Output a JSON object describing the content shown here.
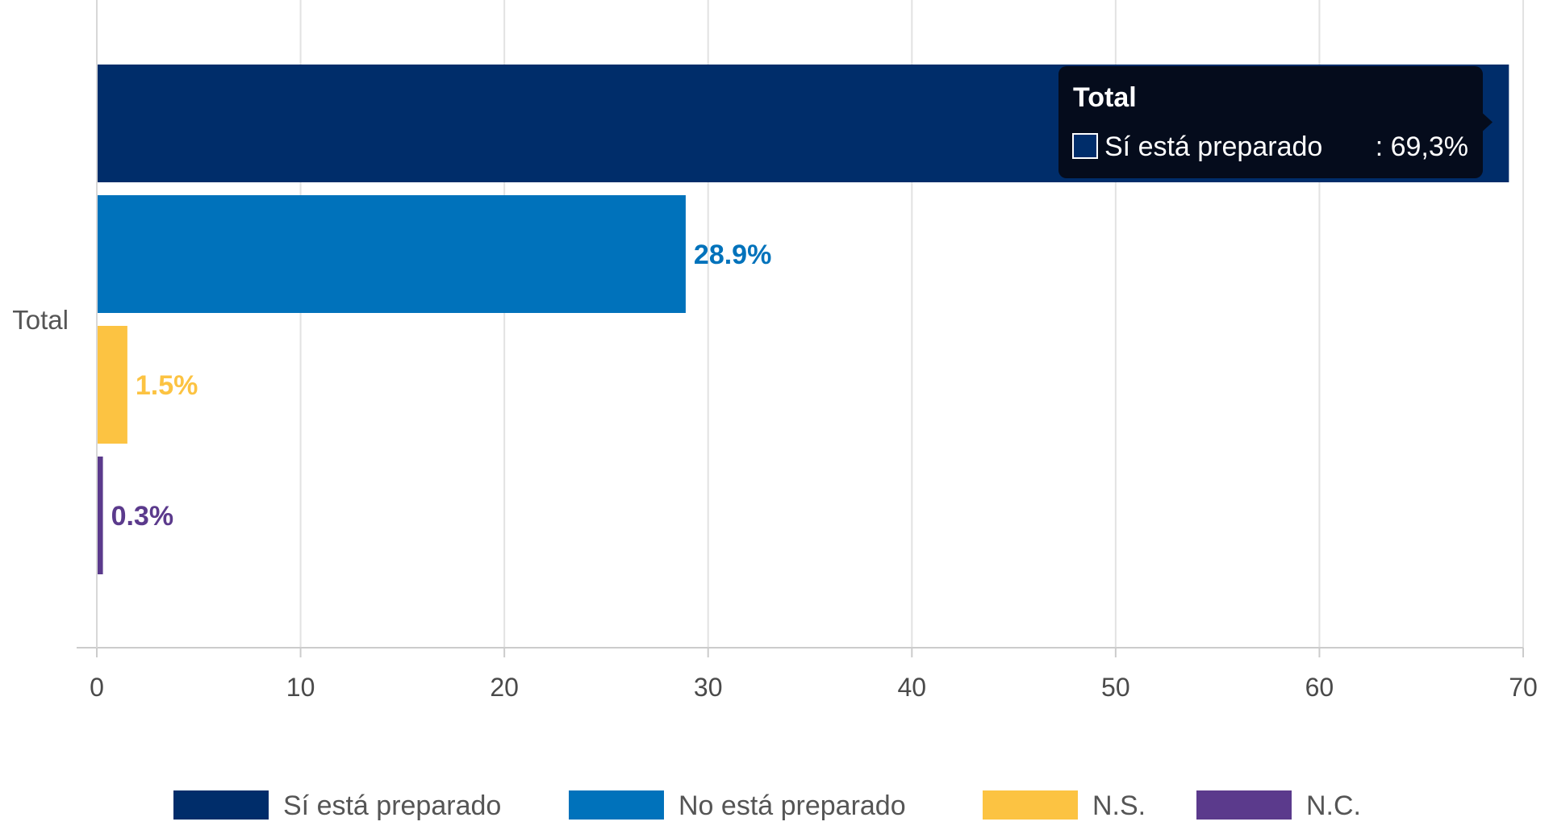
{
  "chart_data": {
    "type": "bar",
    "orientation": "horizontal",
    "categories": [
      "Total"
    ],
    "series": [
      {
        "name": "Sí está preparado",
        "values": [
          69.3
        ],
        "color": "#002d6a",
        "label": ""
      },
      {
        "name": "No está preparado",
        "values": [
          28.9
        ],
        "color": "#0072bb",
        "label": "28.9%"
      },
      {
        "name": "N.S.",
        "values": [
          1.5
        ],
        "color": "#fcc342",
        "label": "1.5%"
      },
      {
        "name": "N.C.",
        "values": [
          0.3
        ],
        "color": "#5b3a8c",
        "label": "0.3%"
      }
    ],
    "xlim": [
      0,
      70
    ],
    "x_ticks": [
      "0",
      "10",
      "20",
      "30",
      "40",
      "50",
      "60",
      "70"
    ],
    "grid": true,
    "legend_position": "bottom",
    "tooltip": {
      "title": "Total",
      "series": "Sí está preparado",
      "value": ": 69,3%"
    }
  }
}
